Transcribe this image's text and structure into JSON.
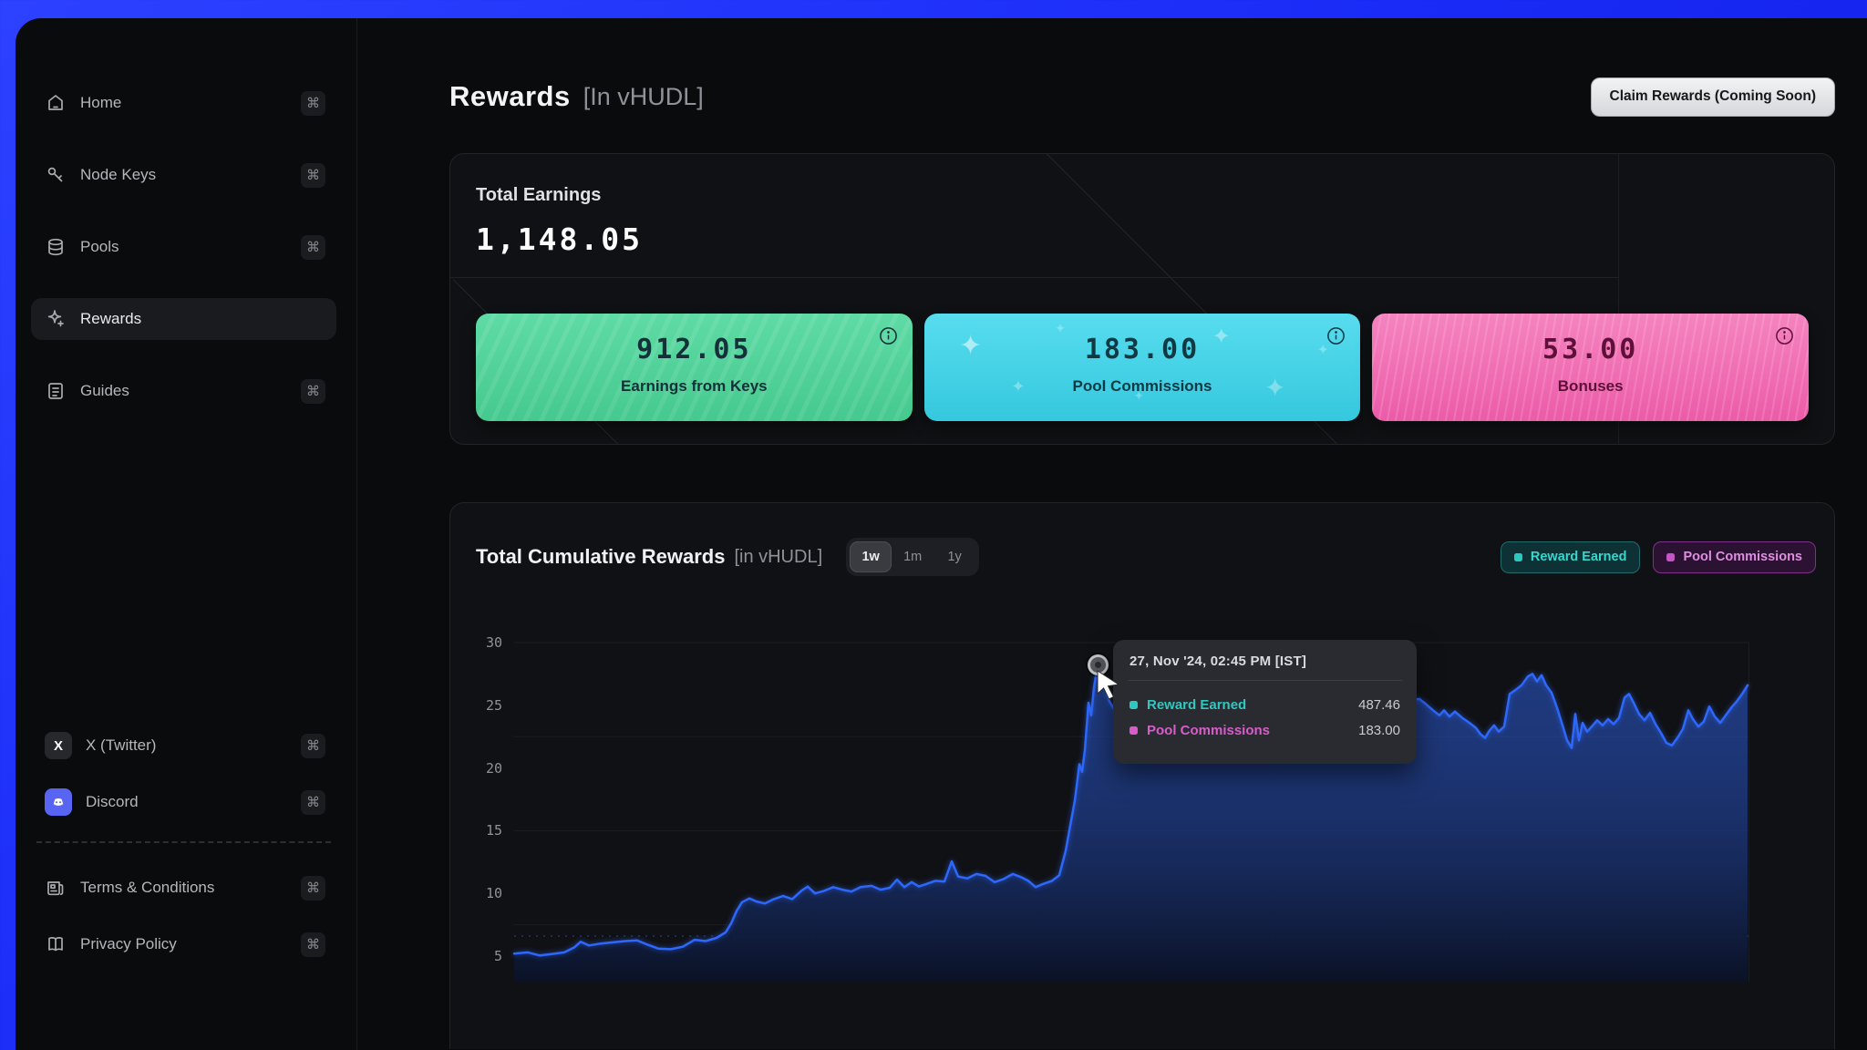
{
  "theme": {
    "frame_blue_top": "#2c42ff",
    "frame_blue_bottom": "#0c18dd",
    "window_ring": "#5b69fc",
    "window_bg": "#0a0b0d",
    "card_bg": "#101114",
    "accent_line_blue": "#2e68fb"
  },
  "sidebar": {
    "items": [
      {
        "label": "Home",
        "shortcut": "⌘",
        "icon": "home-icon",
        "active": false
      },
      {
        "label": "Node Keys",
        "shortcut": "⌘",
        "icon": "key-icon",
        "active": false
      },
      {
        "label": "Pools",
        "shortcut": "⌘",
        "icon": "database-icon",
        "active": false
      },
      {
        "label": "Rewards",
        "shortcut": "⌘",
        "icon": "sparkles-icon",
        "active": true
      },
      {
        "label": "Guides",
        "shortcut": "⌘",
        "icon": "book-icon",
        "active": false
      }
    ],
    "footer_items": [
      {
        "label": "X (Twitter)",
        "shortcut": "⌘",
        "icon": "x-logo-icon"
      },
      {
        "label": "Discord",
        "shortcut": "⌘",
        "icon": "discord-logo-icon"
      },
      {
        "label": "Terms & Conditions",
        "shortcut": "⌘",
        "icon": "newspaper-icon"
      },
      {
        "label": "Privacy Policy",
        "shortcut": "⌘",
        "icon": "open-book-icon"
      }
    ]
  },
  "header": {
    "title": "Rewards",
    "subtitle": "[In vHUDL]",
    "claim_button_label": "Claim Rewards (Coming Soon)"
  },
  "earnings": {
    "title": "Total Earnings",
    "total": "1,148.05",
    "cards": [
      {
        "value": "912.05",
        "label": "Earnings from Keys",
        "color_top": "#5fdba6",
        "color_bottom": "#45c98e",
        "text_color": "#143038",
        "texture": "stripes"
      },
      {
        "value": "183.00",
        "label": "Pool Commissions",
        "color_top": "#58dcef",
        "color_bottom": "#35c8de",
        "text_color": "#0f3a44",
        "texture": "sparkles"
      },
      {
        "value": "53.00",
        "label": "Bonuses",
        "color_top": "#f584c0",
        "color_bottom": "#ec5ba8",
        "text_color": "#5e1038",
        "texture": "dashes"
      }
    ]
  },
  "chart_section": {
    "title": "Total Cumulative Rewards",
    "subtitle": "[in vHUDL]",
    "ranges": [
      "1w",
      "1m",
      "1y"
    ],
    "active_range": "1w",
    "legend": [
      {
        "label": "Reward Earned",
        "color": "#39d6cc",
        "dot": "#2cc8bf",
        "bg": "#0e3136",
        "border": "#226b6b"
      },
      {
        "label": "Pool Commissions",
        "color": "#dc8fdf",
        "dot": "#c455c4",
        "bg": "#2c1232",
        "border": "#81308a"
      }
    ]
  },
  "tooltip": {
    "date": "27, Nov '24, 02:45 PM [IST]",
    "rows": [
      {
        "label": "Reward Earned",
        "value": "487.46",
        "color": "#2ec8c0"
      },
      {
        "label": "Pool Commissions",
        "value": "183.00",
        "color": "#d85ccb"
      }
    ]
  },
  "chart_data": {
    "type": "area",
    "title": "Total Cumulative Rewards [in vHUDL]",
    "xlabel": "",
    "ylabel": "",
    "y_ticks": [
      5,
      10,
      15,
      20,
      25,
      30
    ],
    "y_ticks_desc": [
      "30",
      "25",
      "20",
      "15",
      "10",
      "5"
    ],
    "ylim": [
      5,
      30
    ],
    "y_gridlines_plot": [
      30,
      22.5,
      15,
      7.5
    ],
    "grid": "horizontal-faint",
    "legend_position": "top-right",
    "series": [
      {
        "name": "Reward Earned",
        "color": "#2e68fb",
        "style": "solid-area",
        "points": [
          [
            0,
            5.2
          ],
          [
            15,
            5.3
          ],
          [
            28,
            5.05
          ],
          [
            40,
            5.15
          ],
          [
            55,
            5.3
          ],
          [
            66,
            5.7
          ],
          [
            73,
            6.15
          ],
          [
            82,
            5.85
          ],
          [
            95,
            6.0
          ],
          [
            108,
            6.1
          ],
          [
            122,
            6.2
          ],
          [
            135,
            6.25
          ],
          [
            145,
            5.95
          ],
          [
            158,
            5.6
          ],
          [
            172,
            5.55
          ],
          [
            185,
            5.75
          ],
          [
            198,
            6.3
          ],
          [
            210,
            6.2
          ],
          [
            222,
            6.45
          ],
          [
            232,
            6.9
          ],
          [
            238,
            7.6
          ],
          [
            244,
            8.6
          ],
          [
            250,
            9.3
          ],
          [
            258,
            9.6
          ],
          [
            266,
            9.35
          ],
          [
            275,
            9.2
          ],
          [
            285,
            9.55
          ],
          [
            295,
            9.8
          ],
          [
            305,
            9.55
          ],
          [
            315,
            10.2
          ],
          [
            322,
            10.55
          ],
          [
            330,
            10.0
          ],
          [
            340,
            10.2
          ],
          [
            350,
            10.5
          ],
          [
            360,
            10.3
          ],
          [
            370,
            10.15
          ],
          [
            380,
            10.5
          ],
          [
            392,
            10.6
          ],
          [
            402,
            10.3
          ],
          [
            412,
            10.45
          ],
          [
            420,
            11.1
          ],
          [
            428,
            10.5
          ],
          [
            436,
            10.9
          ],
          [
            444,
            10.55
          ],
          [
            452,
            10.75
          ],
          [
            462,
            11.0
          ],
          [
            472,
            10.95
          ],
          [
            480,
            12.55
          ],
          [
            487,
            11.35
          ],
          [
            497,
            11.2
          ],
          [
            507,
            11.55
          ],
          [
            517,
            11.4
          ],
          [
            527,
            10.9
          ],
          [
            537,
            11.15
          ],
          [
            547,
            11.55
          ],
          [
            556,
            11.3
          ],
          [
            564,
            11.0
          ],
          [
            572,
            10.5
          ],
          [
            580,
            10.75
          ],
          [
            590,
            11.0
          ],
          [
            598,
            11.45
          ],
          [
            605,
            13.4
          ],
          [
            610,
            15.4
          ],
          [
            615,
            17.4
          ],
          [
            620,
            20.3
          ],
          [
            623,
            19.7
          ],
          [
            626,
            21.4
          ],
          [
            630,
            25.2
          ],
          [
            633,
            24.2
          ],
          [
            636,
            26.4
          ],
          [
            640,
            28.25
          ],
          [
            645,
            26.8
          ],
          [
            649,
            26.2
          ],
          [
            653,
            25.3
          ],
          [
            658,
            24.7
          ],
          [
            663,
            25.2
          ],
          [
            672,
            25.7
          ],
          [
            682,
            26.1
          ],
          [
            692,
            25.4
          ],
          [
            702,
            25.9
          ],
          [
            712,
            25.1
          ],
          [
            722,
            24.6
          ],
          [
            732,
            25.0
          ],
          [
            742,
            24.5
          ],
          [
            752,
            24.9
          ],
          [
            762,
            25.4
          ],
          [
            772,
            24.8
          ],
          [
            782,
            25.2
          ],
          [
            792,
            24.6
          ],
          [
            802,
            25.0
          ],
          [
            812,
            24.3
          ],
          [
            822,
            24.8
          ],
          [
            832,
            25.3
          ],
          [
            842,
            24.8
          ],
          [
            852,
            25.5
          ],
          [
            862,
            25.0
          ],
          [
            872,
            24.6
          ],
          [
            882,
            25.1
          ],
          [
            892,
            25.6
          ],
          [
            902,
            25.2
          ],
          [
            912,
            24.8
          ],
          [
            922,
            25.3
          ],
          [
            932,
            25.9
          ],
          [
            942,
            26.4
          ],
          [
            950,
            26.6
          ],
          [
            958,
            26.1
          ],
          [
            966,
            25.5
          ],
          [
            974,
            25.1
          ],
          [
            982,
            25.4
          ],
          [
            993,
            25.5
          ],
          [
            1000,
            25.1
          ],
          [
            1008,
            24.6
          ],
          [
            1015,
            24.2
          ],
          [
            1020,
            24.6
          ],
          [
            1026,
            24.1
          ],
          [
            1032,
            24.5
          ],
          [
            1040,
            24.0
          ],
          [
            1048,
            23.6
          ],
          [
            1055,
            23.2
          ],
          [
            1060,
            22.7
          ],
          [
            1065,
            22.4
          ],
          [
            1070,
            23.0
          ],
          [
            1075,
            23.4
          ],
          [
            1080,
            22.9
          ],
          [
            1086,
            23.3
          ],
          [
            1092,
            25.9
          ],
          [
            1098,
            26.2
          ],
          [
            1105,
            26.6
          ],
          [
            1112,
            27.3
          ],
          [
            1117,
            27.5
          ],
          [
            1122,
            26.9
          ],
          [
            1127,
            27.4
          ],
          [
            1132,
            26.6
          ],
          [
            1138,
            26.0
          ],
          [
            1144,
            24.8
          ],
          [
            1150,
            23.4
          ],
          [
            1155,
            22.2
          ],
          [
            1160,
            21.6
          ],
          [
            1164,
            24.3
          ],
          [
            1168,
            22.2
          ],
          [
            1172,
            23.6
          ],
          [
            1177,
            22.9
          ],
          [
            1182,
            23.3
          ],
          [
            1188,
            23.8
          ],
          [
            1194,
            23.4
          ],
          [
            1200,
            23.9
          ],
          [
            1206,
            23.5
          ],
          [
            1212,
            24.0
          ],
          [
            1218,
            25.6
          ],
          [
            1223,
            25.9
          ],
          [
            1228,
            25.2
          ],
          [
            1234,
            24.3
          ],
          [
            1240,
            23.8
          ],
          [
            1246,
            24.4
          ],
          [
            1252,
            23.5
          ],
          [
            1258,
            22.8
          ],
          [
            1264,
            22.0
          ],
          [
            1270,
            21.8
          ],
          [
            1276,
            22.4
          ],
          [
            1282,
            23.1
          ],
          [
            1288,
            24.6
          ],
          [
            1293,
            23.9
          ],
          [
            1299,
            23.3
          ],
          [
            1305,
            23.7
          ],
          [
            1311,
            24.9
          ],
          [
            1317,
            24.1
          ],
          [
            1323,
            23.6
          ],
          [
            1329,
            24.2
          ],
          [
            1335,
            24.8
          ],
          [
            1341,
            25.3
          ],
          [
            1347,
            25.9
          ],
          [
            1353,
            26.6
          ]
        ]
      },
      {
        "name": "Pool Commissions",
        "color": "#1c2b57",
        "style": "dotted-flat",
        "value": 183.0,
        "plot_value": 6.6
      }
    ],
    "highlight": {
      "point_x": 640,
      "point_value": 28.25,
      "reward_earned": 487.46,
      "pool_commissions": 183.0
    }
  }
}
